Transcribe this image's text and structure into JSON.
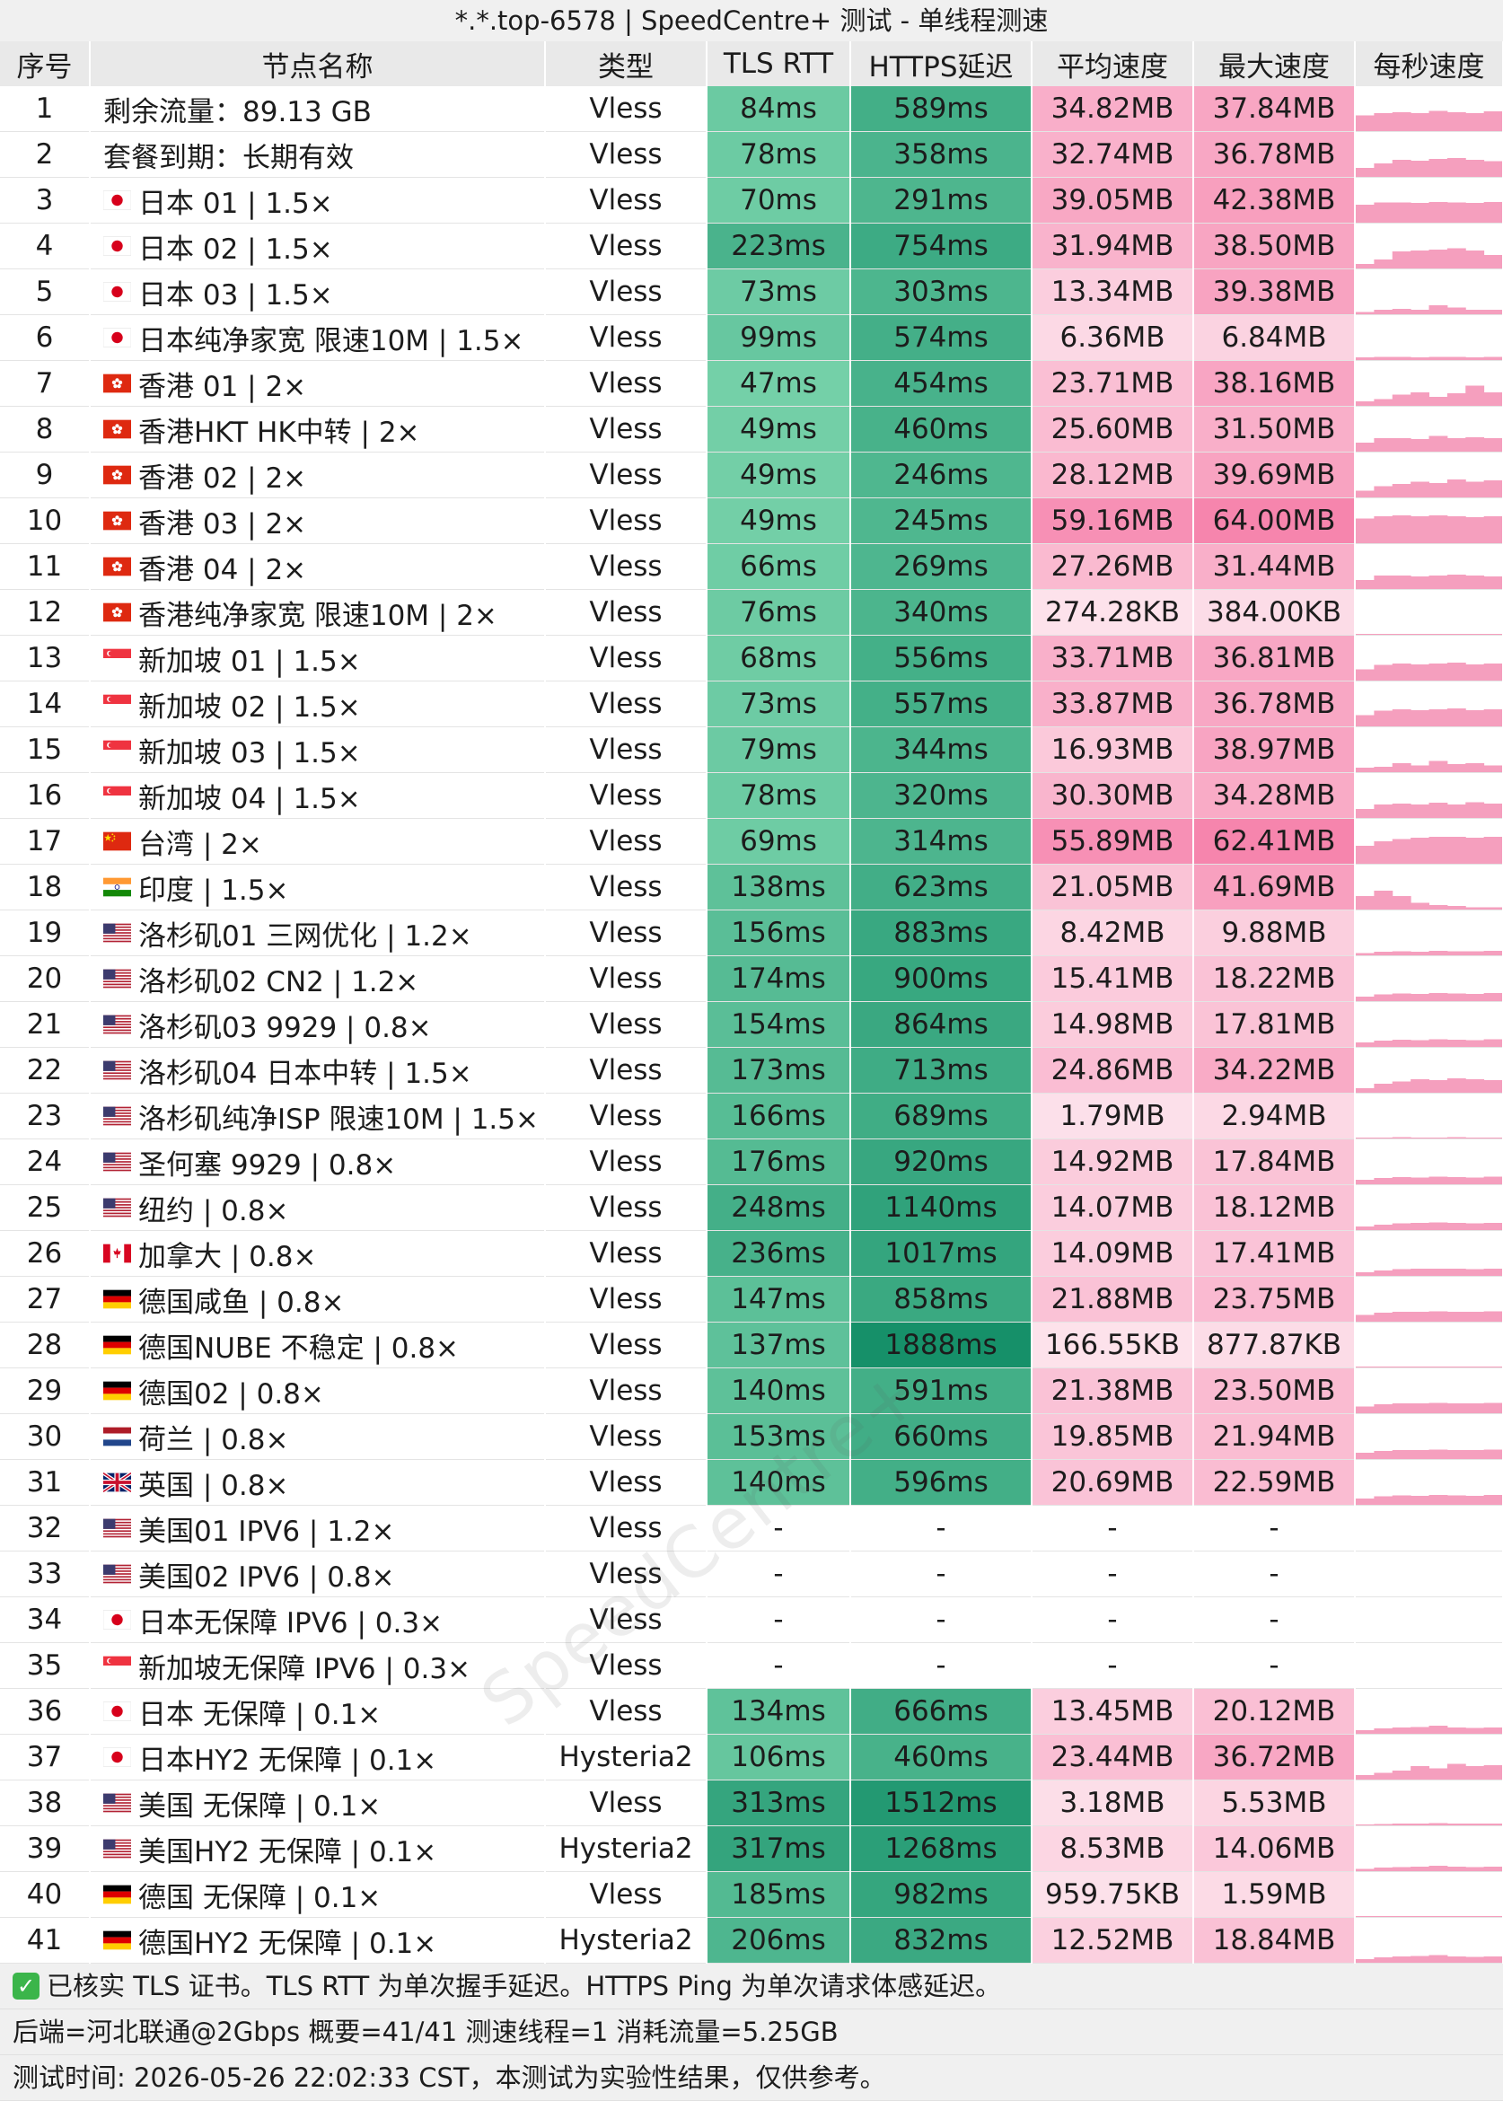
{
  "title": "*.*.top-6578 | SpeedCentre+ 测试 - 单线程测速",
  "watermark": "SpeedCentre+",
  "columns": [
    "序号",
    "节点名称",
    "类型",
    "TLS RTT",
    "HTTPS延迟",
    "平均速度",
    "最大速度",
    "每秒速度"
  ],
  "colors": {
    "header_bg": "#e9e9e9",
    "green_light": "#80d8b0",
    "green_dark": "#148f68",
    "pink_light": "#fde8ef",
    "pink_dark": "#f57aa6",
    "sparkline": "#f59fbe"
  },
  "rows": [
    {
      "idx": "1",
      "flag": "",
      "name": "剩余流量：89.13 GB",
      "type": "Vless",
      "tls": "84ms",
      "https": "589ms",
      "avg": "34.82MB",
      "max": "37.84MB",
      "avg_mb": 34.82,
      "max_mb": 37.84,
      "tls_ms": 84,
      "https_ms": 589,
      "spark": [
        0.35,
        0.4,
        0.42,
        0.4,
        0.45,
        0.42,
        0.4,
        0.44
      ]
    },
    {
      "idx": "2",
      "flag": "",
      "name": "套餐到期：长期有效",
      "type": "Vless",
      "tls": "78ms",
      "https": "358ms",
      "avg": "32.74MB",
      "max": "36.78MB",
      "avg_mb": 32.74,
      "max_mb": 36.78,
      "tls_ms": 78,
      "https_ms": 358,
      "spark": [
        0.2,
        0.3,
        0.38,
        0.36,
        0.4,
        0.42,
        0.38,
        0.35
      ]
    },
    {
      "idx": "3",
      "flag": "jp",
      "name": "日本 01 | 1.5×",
      "type": "Vless",
      "tls": "70ms",
      "https": "291ms",
      "avg": "39.05MB",
      "max": "42.38MB",
      "avg_mb": 39.05,
      "max_mb": 42.38,
      "tls_ms": 70,
      "https_ms": 291,
      "spark": [
        0.4,
        0.45,
        0.45,
        0.44,
        0.46,
        0.45,
        0.44,
        0.46
      ]
    },
    {
      "idx": "4",
      "flag": "jp",
      "name": "日本 02 | 1.5×",
      "type": "Vless",
      "tls": "223ms",
      "https": "754ms",
      "avg": "31.94MB",
      "max": "38.50MB",
      "avg_mb": 31.94,
      "max_mb": 38.5,
      "tls_ms": 223,
      "https_ms": 754,
      "spark": [
        0.1,
        0.2,
        0.38,
        0.4,
        0.42,
        0.45,
        0.4,
        0.3
      ]
    },
    {
      "idx": "5",
      "flag": "jp",
      "name": "日本 03 | 1.5×",
      "type": "Vless",
      "tls": "73ms",
      "https": "303ms",
      "avg": "13.34MB",
      "max": "39.38MB",
      "avg_mb": 13.34,
      "max_mb": 39.38,
      "tls_ms": 73,
      "https_ms": 303,
      "spark": [
        0.05,
        0.1,
        0.12,
        0.1,
        0.2,
        0.15,
        0.1,
        0.1
      ]
    },
    {
      "idx": "6",
      "flag": "jp",
      "name": "日本纯净家宽 限速10M | 1.5×",
      "type": "Vless",
      "tls": "99ms",
      "https": "574ms",
      "avg": "6.36MB",
      "max": "6.84MB",
      "avg_mb": 6.36,
      "max_mb": 6.84,
      "tls_ms": 99,
      "https_ms": 574,
      "spark": [
        0.06,
        0.07,
        0.07,
        0.06,
        0.07,
        0.07,
        0.06,
        0.07
      ]
    },
    {
      "idx": "7",
      "flag": "hk",
      "name": "香港 01 | 2×",
      "type": "Vless",
      "tls": "47ms",
      "https": "454ms",
      "avg": "23.71MB",
      "max": "38.16MB",
      "avg_mb": 23.71,
      "max_mb": 38.16,
      "tls_ms": 47,
      "https_ms": 454,
      "spark": [
        0.1,
        0.15,
        0.25,
        0.3,
        0.2,
        0.28,
        0.45,
        0.3
      ]
    },
    {
      "idx": "8",
      "flag": "hk",
      "name": "香港HKT HK中转 | 2×",
      "type": "Vless",
      "tls": "49ms",
      "https": "460ms",
      "avg": "25.60MB",
      "max": "31.50MB",
      "avg_mb": 25.6,
      "max_mb": 31.5,
      "tls_ms": 49,
      "https_ms": 460,
      "spark": [
        0.2,
        0.3,
        0.3,
        0.28,
        0.35,
        0.3,
        0.32,
        0.3
      ]
    },
    {
      "idx": "9",
      "flag": "hk",
      "name": "香港 02 | 2×",
      "type": "Vless",
      "tls": "49ms",
      "https": "246ms",
      "avg": "28.12MB",
      "max": "39.69MB",
      "avg_mb": 28.12,
      "max_mb": 39.69,
      "tls_ms": 49,
      "https_ms": 246,
      "spark": [
        0.15,
        0.25,
        0.3,
        0.35,
        0.32,
        0.4,
        0.35,
        0.38
      ]
    },
    {
      "idx": "10",
      "flag": "hk",
      "name": "香港 03 | 2×",
      "type": "Vless",
      "tls": "49ms",
      "https": "245ms",
      "avg": "59.16MB",
      "max": "64.00MB",
      "avg_mb": 59.16,
      "max_mb": 64.0,
      "tls_ms": 49,
      "https_ms": 245,
      "spark": [
        0.55,
        0.6,
        0.62,
        0.6,
        0.62,
        0.6,
        0.58,
        0.6
      ]
    },
    {
      "idx": "11",
      "flag": "hk",
      "name": "香港 04 | 2×",
      "type": "Vless",
      "tls": "66ms",
      "https": "269ms",
      "avg": "27.26MB",
      "max": "31.44MB",
      "avg_mb": 27.26,
      "max_mb": 31.44,
      "tls_ms": 66,
      "https_ms": 269,
      "spark": [
        0.2,
        0.3,
        0.3,
        0.28,
        0.3,
        0.32,
        0.3,
        0.28
      ]
    },
    {
      "idx": "12",
      "flag": "hk",
      "name": "香港纯净家宽 限速10M | 2×",
      "type": "Vless",
      "tls": "76ms",
      "https": "340ms",
      "avg": "274.28KB",
      "max": "384.00KB",
      "avg_mb": 0.27,
      "max_mb": 0.38,
      "tls_ms": 76,
      "https_ms": 340,
      "spark": [
        0.01,
        0.01,
        0.01,
        0.01,
        0.01,
        0.01,
        0.01,
        0.01
      ]
    },
    {
      "idx": "13",
      "flag": "sg",
      "name": "新加坡 01 | 1.5×",
      "type": "Vless",
      "tls": "68ms",
      "https": "556ms",
      "avg": "33.71MB",
      "max": "36.81MB",
      "avg_mb": 33.71,
      "max_mb": 36.81,
      "tls_ms": 68,
      "https_ms": 556,
      "spark": [
        0.25,
        0.35,
        0.38,
        0.36,
        0.38,
        0.4,
        0.36,
        0.38
      ]
    },
    {
      "idx": "14",
      "flag": "sg",
      "name": "新加坡 02 | 1.5×",
      "type": "Vless",
      "tls": "73ms",
      "https": "557ms",
      "avg": "33.87MB",
      "max": "36.78MB",
      "avg_mb": 33.87,
      "max_mb": 36.78,
      "tls_ms": 73,
      "https_ms": 557,
      "spark": [
        0.25,
        0.35,
        0.38,
        0.36,
        0.38,
        0.4,
        0.36,
        0.38
      ]
    },
    {
      "idx": "15",
      "flag": "sg",
      "name": "新加坡 03 | 1.5×",
      "type": "Vless",
      "tls": "79ms",
      "https": "344ms",
      "avg": "16.93MB",
      "max": "38.97MB",
      "avg_mb": 16.93,
      "max_mb": 38.97,
      "tls_ms": 79,
      "https_ms": 344,
      "spark": [
        0.1,
        0.12,
        0.2,
        0.15,
        0.25,
        0.18,
        0.2,
        0.15
      ]
    },
    {
      "idx": "16",
      "flag": "sg",
      "name": "新加坡 04 | 1.5×",
      "type": "Vless",
      "tls": "78ms",
      "https": "320ms",
      "avg": "30.30MB",
      "max": "34.28MB",
      "avg_mb": 30.3,
      "max_mb": 34.28,
      "tls_ms": 78,
      "https_ms": 320,
      "spark": [
        0.2,
        0.3,
        0.32,
        0.3,
        0.34,
        0.3,
        0.35,
        0.32
      ]
    },
    {
      "idx": "17",
      "flag": "tw",
      "name": "台湾 | 2×",
      "type": "Vless",
      "tls": "69ms",
      "https": "314ms",
      "avg": "55.89MB",
      "max": "62.41MB",
      "avg_mb": 55.89,
      "max_mb": 62.41,
      "tls_ms": 69,
      "https_ms": 314,
      "spark": [
        0.4,
        0.5,
        0.55,
        0.58,
        0.6,
        0.6,
        0.58,
        0.6
      ]
    },
    {
      "idx": "18",
      "flag": "in",
      "name": "印度 | 1.5×",
      "type": "Vless",
      "tls": "138ms",
      "https": "623ms",
      "avg": "21.05MB",
      "max": "41.69MB",
      "avg_mb": 21.05,
      "max_mb": 41.69,
      "tls_ms": 138,
      "https_ms": 623,
      "spark": [
        0.3,
        0.42,
        0.3,
        0.15,
        0.1,
        0.08,
        0.05,
        0.05
      ]
    },
    {
      "idx": "19",
      "flag": "us",
      "name": "洛杉矶01 三网优化 | 1.2×",
      "type": "Vless",
      "tls": "156ms",
      "https": "883ms",
      "avg": "8.42MB",
      "max": "9.88MB",
      "avg_mb": 8.42,
      "max_mb": 9.88,
      "tls_ms": 156,
      "https_ms": 883,
      "spark": [
        0.05,
        0.08,
        0.09,
        0.08,
        0.1,
        0.09,
        0.09,
        0.1
      ]
    },
    {
      "idx": "20",
      "flag": "us",
      "name": "洛杉矶02 CN2 | 1.2×",
      "type": "Vless",
      "tls": "174ms",
      "https": "900ms",
      "avg": "15.41MB",
      "max": "18.22MB",
      "avg_mb": 15.41,
      "max_mb": 18.22,
      "tls_ms": 174,
      "https_ms": 900,
      "spark": [
        0.1,
        0.15,
        0.17,
        0.16,
        0.18,
        0.17,
        0.16,
        0.18
      ]
    },
    {
      "idx": "21",
      "flag": "us",
      "name": "洛杉矶03 9929 | 0.8×",
      "type": "Vless",
      "tls": "154ms",
      "https": "864ms",
      "avg": "14.98MB",
      "max": "17.81MB",
      "avg_mb": 14.98,
      "max_mb": 17.81,
      "tls_ms": 154,
      "https_ms": 864,
      "spark": [
        0.1,
        0.14,
        0.16,
        0.15,
        0.17,
        0.16,
        0.15,
        0.17
      ]
    },
    {
      "idx": "22",
      "flag": "us",
      "name": "洛杉矶04 日本中转 | 1.5×",
      "type": "Vless",
      "tls": "173ms",
      "https": "713ms",
      "avg": "24.86MB",
      "max": "34.22MB",
      "avg_mb": 24.86,
      "max_mb": 34.22,
      "tls_ms": 173,
      "https_ms": 713,
      "spark": [
        0.1,
        0.2,
        0.25,
        0.3,
        0.28,
        0.32,
        0.3,
        0.28
      ]
    },
    {
      "idx": "23",
      "flag": "us",
      "name": "洛杉矶纯净ISP 限速10M | 1.5×",
      "type": "Vless",
      "tls": "166ms",
      "https": "689ms",
      "avg": "1.79MB",
      "max": "2.94MB",
      "avg_mb": 1.79,
      "max_mb": 2.94,
      "tls_ms": 166,
      "https_ms": 689,
      "spark": [
        0.02,
        0.02,
        0.03,
        0.02,
        0.02,
        0.03,
        0.02,
        0.02
      ]
    },
    {
      "idx": "24",
      "flag": "us",
      "name": "圣何塞 9929 | 0.8×",
      "type": "Vless",
      "tls": "176ms",
      "https": "920ms",
      "avg": "14.92MB",
      "max": "17.84MB",
      "avg_mb": 14.92,
      "max_mb": 17.84,
      "tls_ms": 176,
      "https_ms": 920,
      "spark": [
        0.1,
        0.14,
        0.16,
        0.15,
        0.17,
        0.16,
        0.15,
        0.17
      ]
    },
    {
      "idx": "25",
      "flag": "us",
      "name": "纽约 | 0.8×",
      "type": "Vless",
      "tls": "248ms",
      "https": "1140ms",
      "avg": "14.07MB",
      "max": "18.12MB",
      "avg_mb": 14.07,
      "max_mb": 18.12,
      "tls_ms": 248,
      "https_ms": 1140,
      "spark": [
        0.08,
        0.12,
        0.15,
        0.16,
        0.17,
        0.16,
        0.15,
        0.16
      ]
    },
    {
      "idx": "26",
      "flag": "ca",
      "name": "加拿大 | 0.8×",
      "type": "Vless",
      "tls": "236ms",
      "https": "1017ms",
      "avg": "14.09MB",
      "max": "17.41MB",
      "avg_mb": 14.09,
      "max_mb": 17.41,
      "tls_ms": 236,
      "https_ms": 1017,
      "spark": [
        0.08,
        0.12,
        0.15,
        0.16,
        0.16,
        0.16,
        0.15,
        0.16
      ]
    },
    {
      "idx": "27",
      "flag": "de",
      "name": "德国咸鱼 | 0.8×",
      "type": "Vless",
      "tls": "147ms",
      "https": "858ms",
      "avg": "21.88MB",
      "max": "23.75MB",
      "avg_mb": 21.88,
      "max_mb": 23.75,
      "tls_ms": 147,
      "https_ms": 858,
      "spark": [
        0.15,
        0.2,
        0.22,
        0.22,
        0.23,
        0.22,
        0.22,
        0.23
      ]
    },
    {
      "idx": "28",
      "flag": "de",
      "name": "德国NUBE 不稳定 | 0.8×",
      "type": "Vless",
      "tls": "137ms",
      "https": "1888ms",
      "avg": "166.55KB",
      "max": "877.87KB",
      "avg_mb": 0.17,
      "max_mb": 0.88,
      "tls_ms": 137,
      "https_ms": 1888,
      "spark": [
        0.005,
        0.01,
        0.005,
        0.005,
        0.005,
        0.005,
        0.005,
        0.005
      ]
    },
    {
      "idx": "29",
      "flag": "de",
      "name": "德国02 | 0.8×",
      "type": "Vless",
      "tls": "140ms",
      "https": "591ms",
      "avg": "21.38MB",
      "max": "23.50MB",
      "avg_mb": 21.38,
      "max_mb": 23.5,
      "tls_ms": 140,
      "https_ms": 591,
      "spark": [
        0.15,
        0.2,
        0.22,
        0.22,
        0.23,
        0.22,
        0.22,
        0.23
      ]
    },
    {
      "idx": "30",
      "flag": "nl",
      "name": "荷兰 | 0.8×",
      "type": "Vless",
      "tls": "153ms",
      "https": "660ms",
      "avg": "19.85MB",
      "max": "21.94MB",
      "avg_mb": 19.85,
      "max_mb": 21.94,
      "tls_ms": 153,
      "https_ms": 660,
      "spark": [
        0.14,
        0.18,
        0.2,
        0.2,
        0.21,
        0.2,
        0.2,
        0.21
      ]
    },
    {
      "idx": "31",
      "flag": "gb",
      "name": "英国 | 0.8×",
      "type": "Vless",
      "tls": "140ms",
      "https": "596ms",
      "avg": "20.69MB",
      "max": "22.59MB",
      "avg_mb": 20.69,
      "max_mb": 22.59,
      "tls_ms": 140,
      "https_ms": 596,
      "spark": [
        0.14,
        0.19,
        0.21,
        0.2,
        0.22,
        0.21,
        0.2,
        0.22
      ]
    },
    {
      "idx": "32",
      "flag": "us",
      "name": "美国01 IPV6 | 1.2×",
      "type": "Vless",
      "tls": "-",
      "https": "-",
      "avg": "-",
      "max": "-",
      "avg_mb": null,
      "max_mb": null,
      "tls_ms": null,
      "https_ms": null,
      "spark": []
    },
    {
      "idx": "33",
      "flag": "us",
      "name": "美国02 IPV6 | 0.8×",
      "type": "Vless",
      "tls": "-",
      "https": "-",
      "avg": "-",
      "max": "-",
      "avg_mb": null,
      "max_mb": null,
      "tls_ms": null,
      "https_ms": null,
      "spark": []
    },
    {
      "idx": "34",
      "flag": "jp",
      "name": "日本无保障 IPV6 | 0.3×",
      "type": "Vless",
      "tls": "-",
      "https": "-",
      "avg": "-",
      "max": "-",
      "avg_mb": null,
      "max_mb": null,
      "tls_ms": null,
      "https_ms": null,
      "spark": []
    },
    {
      "idx": "35",
      "flag": "sg",
      "name": "新加坡无保障 IPV6 | 0.3×",
      "type": "Vless",
      "tls": "-",
      "https": "-",
      "avg": "-",
      "max": "-",
      "avg_mb": null,
      "max_mb": null,
      "tls_ms": null,
      "https_ms": null,
      "spark": []
    },
    {
      "idx": "36",
      "flag": "jp",
      "name": "日本 无保障 | 0.1×",
      "type": "Vless",
      "tls": "134ms",
      "https": "666ms",
      "avg": "13.45MB",
      "max": "20.12MB",
      "avg_mb": 13.45,
      "max_mb": 20.12,
      "tls_ms": 134,
      "https_ms": 666,
      "spark": [
        0.08,
        0.12,
        0.14,
        0.15,
        0.18,
        0.14,
        0.13,
        0.14
      ]
    },
    {
      "idx": "37",
      "flag": "jp",
      "name": "日本HY2 无保障 | 0.1×",
      "type": "Hysteria2",
      "tls": "106ms",
      "https": "460ms",
      "avg": "23.44MB",
      "max": "36.72MB",
      "avg_mb": 23.44,
      "max_mb": 36.72,
      "tls_ms": 106,
      "https_ms": 460,
      "spark": [
        0.1,
        0.15,
        0.2,
        0.3,
        0.25,
        0.35,
        0.3,
        0.32
      ]
    },
    {
      "idx": "38",
      "flag": "us",
      "name": "美国 无保障 | 0.1×",
      "type": "Vless",
      "tls": "313ms",
      "https": "1512ms",
      "avg": "3.18MB",
      "max": "5.53MB",
      "avg_mb": 3.18,
      "max_mb": 5.53,
      "tls_ms": 313,
      "https_ms": 1512,
      "spark": [
        0.02,
        0.03,
        0.04,
        0.04,
        0.05,
        0.04,
        0.04,
        0.04
      ]
    },
    {
      "idx": "39",
      "flag": "us",
      "name": "美国HY2 无保障 | 0.1×",
      "type": "Hysteria2",
      "tls": "317ms",
      "https": "1268ms",
      "avg": "8.53MB",
      "max": "14.06MB",
      "avg_mb": 8.53,
      "max_mb": 14.06,
      "tls_ms": 317,
      "https_ms": 1268,
      "spark": [
        0.05,
        0.08,
        0.09,
        0.1,
        0.12,
        0.1,
        0.09,
        0.1
      ]
    },
    {
      "idx": "40",
      "flag": "de",
      "name": "德国 无保障 | 0.1×",
      "type": "Vless",
      "tls": "185ms",
      "https": "982ms",
      "avg": "959.75KB",
      "max": "1.59MB",
      "avg_mb": 0.94,
      "max_mb": 1.59,
      "tls_ms": 185,
      "https_ms": 982,
      "spark": [
        0.01,
        0.01,
        0.01,
        0.01,
        0.015,
        0.01,
        0.01,
        0.01
      ]
    },
    {
      "idx": "41",
      "flag": "de",
      "name": "德国HY2 无保障 | 0.1×",
      "type": "Hysteria2",
      "tls": "206ms",
      "https": "832ms",
      "avg": "12.52MB",
      "max": "18.84MB",
      "avg_mb": 12.52,
      "max_mb": 18.84,
      "tls_ms": 206,
      "https_ms": 832,
      "spark": [
        0.08,
        0.12,
        0.14,
        0.15,
        0.17,
        0.14,
        0.13,
        0.14
      ]
    }
  ],
  "footer": {
    "line1": "已核实 TLS 证书。TLS RTT 为单次握手延迟。HTTPS Ping 为单次请求体感延迟。",
    "line2": "后端=河北联通@2Gbps 概要=41/41 测速线程=1 消耗流量=5.25GB",
    "line3": "测试时间: 2026-05-26 22:02:33 CST，本测试为实验性结果，仅供参考。"
  }
}
